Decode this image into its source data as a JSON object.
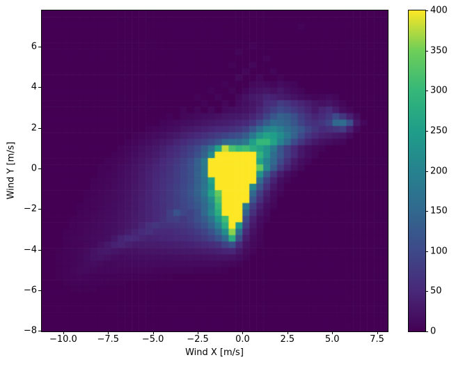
{
  "chart_data": {
    "type": "heatmap",
    "xlabel": "Wind X [m/s]",
    "ylabel": "Wind Y [m/s]",
    "xlim": [
      -11.2,
      8.1
    ],
    "ylim": [
      -8.03,
      7.79
    ],
    "grid_on": false,
    "x_ticks": {
      "values": [
        -10.0,
        -7.5,
        -5.0,
        -2.5,
        0.0,
        2.5,
        5.0,
        7.5
      ],
      "labels": [
        "−10.0",
        "−7.5",
        "−5.0",
        "−2.5",
        "0.0",
        "2.5",
        "5.0",
        "7.5"
      ]
    },
    "y_ticks": {
      "values": [
        6,
        4,
        2,
        0,
        -2,
        -4,
        -6,
        -8
      ],
      "labels": [
        "6",
        "4",
        "2",
        "0",
        "−2",
        "−4",
        "−6",
        "−8"
      ]
    },
    "colorbar": {
      "vmin": 0,
      "vmax": 400,
      "tick_values": [
        0,
        50,
        100,
        150,
        200,
        250,
        300,
        350,
        400
      ],
      "tick_labels": [
        "0",
        "50",
        "100",
        "150",
        "200",
        "250",
        "300",
        "350",
        "400"
      ]
    },
    "colormap": {
      "name": "viridis",
      "stops": [
        "#440154",
        "#482878",
        "#3e4989",
        "#31688e",
        "#26828e",
        "#1f9e89",
        "#35b779",
        "#6ece58",
        "#fde725"
      ]
    },
    "grid": {
      "cols": 50,
      "rows": 50,
      "row0_y": 7.79,
      "encoding": "space-separated tokens per row, top row first; token 'v' = count value, 'vxN' = value v repeated N times",
      "rows_rle": [
        "0x50",
        "0x50",
        "0x37 5 0x12",
        "0x50",
        "0x50",
        "0x30 5 0x19",
        "0x28 6 0x21",
        "0x32 7 0x17",
        "0x27 5 0x2 8 0x19",
        "0x29 8 0x3 6 0x16",
        "0x28 10 0x2 8 0x2 5 0x15",
        "0x26 5 0x3 10 14 12 8 15 10 6 0x13",
        "0x24 5 0x2 6 0 8 18 22 25 20 28 18 12 8 0x12",
        "0x22 4 0x2 6 0x2 10 20 30 35 45 40 35 30 22 15 10 6 8 12 8 0x7",
        "0x23 5 0x2 8 0 12 18 25 35 55 60 80 70 55 45 35 25 20 25 15 8 0x6",
        "0x20 6 0 8 0 10 0 12 15 18 22 30 45 65 85 100 90 75 60 45 30 45 55 35 15 8 0x5",
        "0x18 5 0 8 10 12 15 18 20 25 28 30 35 45 60 90 120 140 130 110 80 60 45 55 70 100 70 40 15 0x4",
        "0x17 6 8 12 15 18 22 25 30 33 36 40 45 50 70 100 130 160 150 140 120 90 70 60 70 90 150 160 110 30 8 0x3",
        "0x15 5 8 10 14 18 25 30 35 40 45 50 55 60 70 85 120 160 200 210 190 160 140 120 90 70 55 60 70 80 40 12 0x4",
        "0x13 4 6 10 14 18 24 30 38 45 52 60 70 80 90 100 110 130 180 230 260 250 220 180 140 100 70 50 40 35 30 25 12 0x5",
        "0x12 5 8 12 16 22 28 35 45 55 65 75 85 100 120 150 160 160 180 250 300 300 260 200 150 100 70 45 30 20 15 10 8 0x6",
        "0x11 5 8 12 18 24 30 38 48 58 70 85 100 130 170 260 380 320 300 310 280 260 230 180 120 80 50 30 18 10 6 0x9",
        "0x10 4 6 10 15 20 26 33 42 52 62 75 90 110 140 210 400x6 290 230 160 120 80 50 28 15 8 0x10",
        "0x9 4 6 9 14 19 25 32 40 50 60 72 88 105 135 185 400x7 260 200 150 100 60 32 16 8 0x11",
        "0x8 4 5 8 12 17 23 30 37 45 55 65 78 92 110 135 180 400x7 340 210 130 75 42 22 10 0x12",
        "0x8 5 7 10 14 19 25 32 40 48 58 68 80 95 110 140 185 400x7 230 130 70 35 16 7 0x13",
        "0x7 4 6 8 11 15 20 26 33 41 50 60 70 82 95 110 135 170 260 400x6 160 85 42 18 8 0x14",
        "0x7 5 7 9 12 16 21 27 34 42 52 62 73 85 98 115 140 175 240 400x5 210 120 60 28 12 0x15",
        "0x6 3 5 8 10 13 17 22 28 35 43 52 62 74 86 100 118 142 180 260 340 400x4 150 80 38 16 7 0x15",
        "0x6 4 6 8 11 14 18 23 29 36 44 53 63 74 85 98 112 132 160 220 320 400x4 120 60 28 12 0x16",
        "0x5 3 5 7 9 12 15 19 24 30 37 45 53 62 72 83 94 105 122 148 200 300 400x3 180 80 40 18 8 0x16",
        "0x5 4 6 8 10 13 16 20 25 31 38 45 52 60 85 115 95 90 110 150 210 280 400x3 140 60 28 12 0x17",
        "0x4 3 5 7 9 11 14 17 21 26 32 38 44 50 65 80 85 75 90 110 130 170 240 310 400 400 100 40 16 7 0x17",
        "0x4 4 6 8 10 12 15 18 22 27 33 45 60 70 65 65 70 72 80 95 115 145 200 280 400 240 80 30 12 0x18",
        "0x3 3 5 7 9 11 13 16 19 25 35 45 55 60 52 50 52 58 62 68 78 92 115 150 220 360 160 50 20 8 0x18",
        "0x3 4 6 8 10 12 14 18 30 45 55 50 45 42 44 46 48 50 53 58 65 75 90 115 150 280 110 35 14 6 0x18",
        "0x3 3 5 7 9 12 20 30 40 45 38 32 33 34 35 36 37 38 40 42 46 50 56 65 90 110 55 22 10 5 0x18",
        "0x2 2 4 6 9 14 22 28 30 26 22 20 21 23 24 25 26 27 28 29 30 32 34 36 40 45 48 30 14 7 0x19",
        "0x2 3 5 7 10 16 22 24 20 16 14 15 16 16 17 17 18 18 19 19 20 20 21 22 23 24 22 15 8 0x20",
        "0x2 2 4 6 10 14 16 13 10 10 11 11 12 12 12 12 12 12 12 12 12 12 12 12 11 10 8 5 0x21",
        "0x2 2 4 8 11 12 10 8 8 8 8 8 8 8 8 7 7 7 6 6 6 5 5 4 4 3 0x23",
        "0x2 2 5 7 8 7 5 5 5 5 4 4 4 3 3 3 2 2 0x31",
        "0x3 2 4 4 4 3 3 2 2 2 0x38",
        "0x4 2 2 2 2 0x42",
        "0x50",
        "0x50",
        "0x50",
        "0x50",
        "0x50",
        "0x50"
      ]
    }
  }
}
